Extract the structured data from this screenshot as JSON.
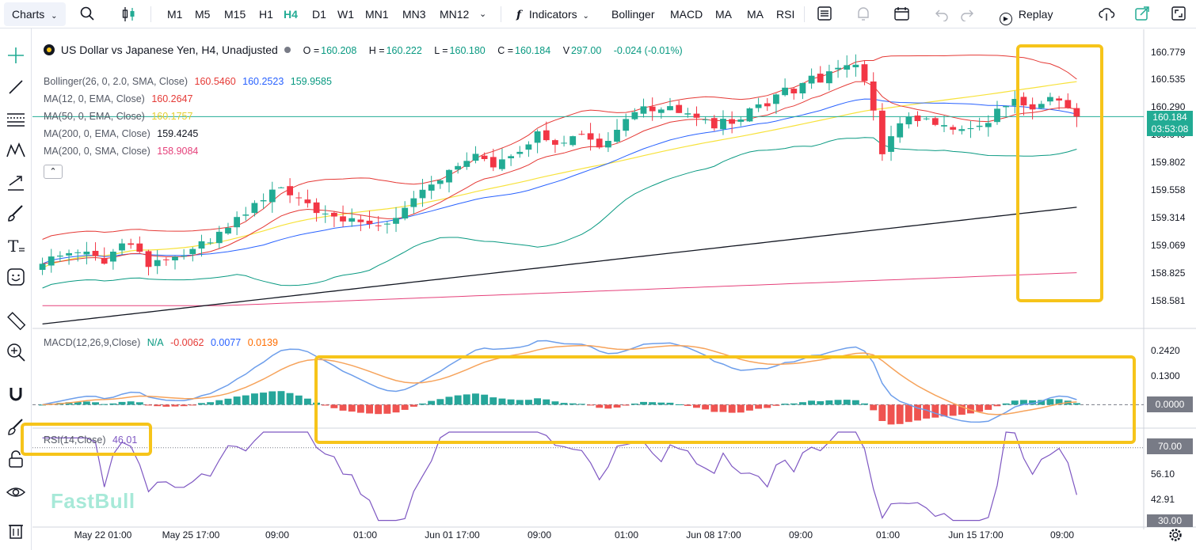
{
  "toolbar": {
    "charts_label": "Charts",
    "timeframes": [
      "M1",
      "M5",
      "M15",
      "H1",
      "H4",
      "D1",
      "W1",
      "MN1",
      "MN3",
      "MN12"
    ],
    "active_timeframe": "H4",
    "indicators_label": "Indicators",
    "indicator_shortcuts": [
      "Bollinger",
      "MACD",
      "MA",
      "MA",
      "RSI"
    ],
    "replay_label": "Replay"
  },
  "main": {
    "symbol_title": "US Dollar vs Japanese Yen, H4, Unadjusted",
    "ohlc": {
      "o_label": "O =",
      "o": "160.208",
      "h_label": "H =",
      "h": "160.222",
      "l_label": "L =",
      "l": "160.180",
      "c_label": "C =",
      "c": "160.184",
      "v_label": "V",
      "v": "297.00",
      "change": "-0.024 (-0.01%)"
    },
    "legend": [
      {
        "label": "Bollinger(26, 0, 2.0, SMA, Close)",
        "values": [
          "160.5460",
          "160.2523",
          "159.9585"
        ],
        "colors": [
          "#e53935",
          "#2962ff",
          "#089981"
        ]
      },
      {
        "label": "MA(12, 0, EMA, Close)",
        "values": [
          "160.2647"
        ],
        "colors": [
          "#e53935"
        ]
      },
      {
        "label": "MA(50, 0, EMA, Close)",
        "values": [
          "160.1757"
        ],
        "colors": [
          "#f7e23b"
        ]
      },
      {
        "label": "MA(200, 0, EMA, Close)",
        "values": [
          "159.4245"
        ],
        "colors": [
          "#131722"
        ]
      },
      {
        "label": "MA(200, 0, SMA, Close)",
        "values": [
          "158.9084"
        ],
        "colors": [
          "#e5407a"
        ]
      }
    ],
    "current_price": "160.184",
    "countdown": "03:53:08"
  },
  "macd": {
    "label": "MACD(12,26,9,Close)",
    "values": [
      "N/A",
      "-0.0062",
      "0.0077",
      "0.0139"
    ],
    "colors": [
      "#089981",
      "#e53935",
      "#2962ff",
      "#ff6d00"
    ],
    "zero_tag": "0.0000"
  },
  "rsi": {
    "label": "RSI(14,Close)",
    "value": "46.01",
    "level_tag": "70.00",
    "bottom_tag": "30.00"
  },
  "axes": {
    "price_ticks": [
      "160.779",
      "160.535",
      "160.290",
      "160.046",
      "159.802",
      "159.558",
      "159.314",
      "159.069",
      "158.825",
      "158.581"
    ],
    "macd_ticks": [
      "0.2420",
      "0.1300"
    ],
    "rsi_ticks": [
      "56.10",
      "42.91"
    ],
    "time_ticks": [
      "May 22 01:00",
      "May 25 17:00",
      "09:00",
      "01:00",
      "Jun 01 17:00",
      "09:00",
      "01:00",
      "Jun 08 17:00",
      "09:00",
      "01:00",
      "Jun 15 17:00",
      "09:00"
    ]
  },
  "watermark": "FastBull",
  "colors": {
    "up": "#22ab94",
    "down": "#f23645",
    "accent": "#22ab94",
    "highlight": "#f6c41a"
  },
  "chart_data": {
    "type": "candlestick",
    "symbol": "USDJPY",
    "timeframe": "H4",
    "ylim": [
      158.45,
      160.85
    ],
    "x": [
      "May 22 01:00",
      "May 25 17:00",
      "09:00",
      "01:00",
      "Jun 01 17:00",
      "09:00",
      "01:00",
      "Jun 08 17:00",
      "09:00",
      "01:00",
      "Jun 15 17:00",
      "09:00"
    ],
    "close_path": [
      158.95,
      159.05,
      159.12,
      159.0,
      159.15,
      158.98,
      159.05,
      159.08,
      159.2,
      159.35,
      159.5,
      159.6,
      159.55,
      159.38,
      159.3,
      159.35,
      159.28,
      159.45,
      159.6,
      159.72,
      159.85,
      159.78,
      159.9,
      160.05,
      159.95,
      160.0,
      159.92,
      160.2,
      160.25,
      160.3,
      160.18,
      160.1,
      160.15,
      160.22,
      160.35,
      160.42,
      160.5,
      160.55,
      160.6,
      159.9,
      160.2,
      160.15,
      160.1,
      160.12,
      160.18,
      160.3,
      160.26,
      160.35,
      160.18
    ],
    "current_price": 160.184,
    "macd_ylim": [
      -0.08,
      0.27
    ],
    "rsi_ylim": [
      30,
      80
    ],
    "rsi_level": 70,
    "rsi_current": 46.01
  }
}
